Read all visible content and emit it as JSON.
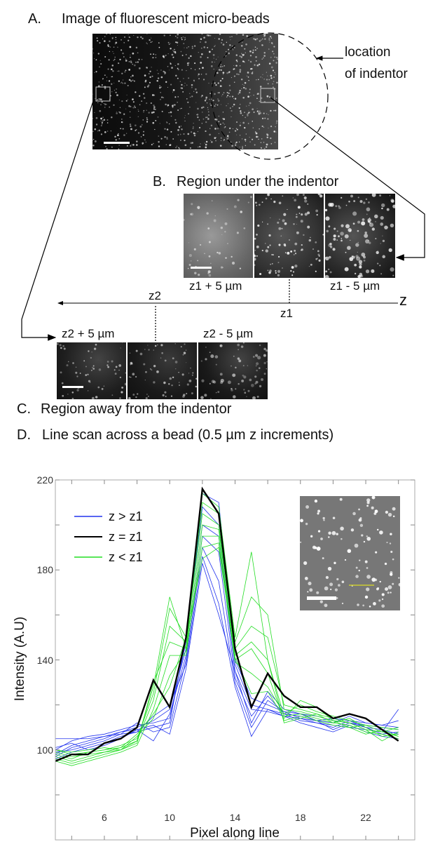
{
  "panels": {
    "a": {
      "letter": "A.",
      "title": "Image of fluorescent micro-beads",
      "annotation_line1": "location",
      "annotation_line2": "of indentor"
    },
    "b": {
      "letter": "B.",
      "title": "Region under the indentor",
      "label_left": "z1 + 5 µm",
      "label_right": "z1 - 5 µm"
    },
    "c": {
      "letter": "C.",
      "title": "Region away from the indentor",
      "label_left": "z2 + 5 µm",
      "label_right": "z2 - 5 µm"
    },
    "z_axis": {
      "axis_label": "z",
      "z1_label": "z1",
      "z2_label": "z2"
    },
    "d": {
      "letter": "D.",
      "title": "Line scan across a bead (0.5 µm z increments)"
    }
  },
  "colors": {
    "blue": "#2233ee",
    "black": "#000000",
    "green": "#22dd22",
    "inset_marker": "#cccc33"
  },
  "chart_data": {
    "type": "line",
    "title": "Line scan across a bead (0.5 µm z increments)",
    "xlabel": "Pixel along line",
    "ylabel": "Intensity (A.U)",
    "xlim": [
      3,
      25
    ],
    "ylim": [
      60,
      220
    ],
    "xticks": [
      "6",
      "10",
      "14",
      "18",
      "22"
    ],
    "yticks": [
      "100",
      "140",
      "180",
      "220"
    ],
    "legend": {
      "placement": "top-left",
      "entries": [
        "z > z1",
        "z = z1",
        "z < z1"
      ]
    },
    "x": [
      3,
      4,
      5,
      6,
      7,
      8,
      9,
      10,
      11,
      12,
      13,
      14,
      15,
      16,
      17,
      18,
      19,
      20,
      21,
      22,
      23,
      24
    ],
    "series": [
      {
        "name": "z = z1",
        "group": "black",
        "values": [
          95,
          98,
          98,
          103,
          105,
          110,
          131,
          119,
          150,
          216,
          205,
          145,
          119,
          134,
          124,
          119,
          119,
          114,
          116,
          114,
          109,
          104
        ]
      },
      {
        "name": "z > z1",
        "group": "blue",
        "values": [
          105,
          105,
          105,
          106,
          107,
          108,
          110,
          112,
          150,
          214,
          210,
          140,
          123,
          120,
          117,
          116,
          115,
          113,
          112,
          111,
          110,
          109
        ]
      },
      {
        "name": "z > z1",
        "group": "blue",
        "values": [
          100,
          104,
          106,
          107,
          109,
          111,
          112,
          114,
          148,
          208,
          200,
          138,
          120,
          118,
          116,
          115,
          113,
          114,
          113,
          112,
          111,
          113
        ]
      },
      {
        "name": "z > z1",
        "group": "blue",
        "values": [
          98,
          102,
          104,
          106,
          108,
          110,
          113,
          118,
          145,
          200,
          195,
          135,
          118,
          117,
          115,
          114,
          113,
          112,
          115,
          112,
          111,
          110
        ]
      },
      {
        "name": "z > z1",
        "group": "blue",
        "values": [
          97,
          101,
          103,
          105,
          108,
          109,
          104,
          116,
          142,
          195,
          188,
          132,
          115,
          124,
          116,
          113,
          112,
          111,
          110,
          109,
          108,
          118
        ]
      },
      {
        "name": "z > z1",
        "group": "blue",
        "values": [
          99,
          100,
          102,
          104,
          107,
          112,
          108,
          110,
          140,
          190,
          175,
          130,
          110,
          122,
          117,
          114,
          112,
          110,
          113,
          110,
          109,
          107
        ]
      },
      {
        "name": "z > z1",
        "group": "blue",
        "values": [
          96,
          99,
          101,
          103,
          106,
          108,
          115,
          120,
          138,
          186,
          165,
          128,
          106,
          118,
          115,
          112,
          110,
          108,
          111,
          108,
          106,
          105
        ]
      },
      {
        "name": "z > z1",
        "group": "blue",
        "values": [
          101,
          103,
          100,
          102,
          105,
          109,
          111,
          107,
          136,
          183,
          160,
          135,
          112,
          126,
          118,
          116,
          113,
          109,
          112,
          110,
          107,
          108
        ]
      },
      {
        "name": "z < z1",
        "group": "green",
        "values": [
          100,
          99,
          100,
          101,
          100,
          104,
          128,
          168,
          145,
          214,
          208,
          150,
          188,
          140,
          112,
          114,
          116,
          112,
          114,
          110,
          106,
          107
        ]
      },
      {
        "name": "z < z1",
        "group": "green",
        "values": [
          98,
          96,
          99,
          100,
          102,
          105,
          125,
          163,
          150,
          210,
          205,
          148,
          168,
          160,
          118,
          117,
          115,
          113,
          110,
          111,
          108,
          106
        ]
      },
      {
        "name": "z < z1",
        "group": "green",
        "values": [
          97,
          95,
          97,
          99,
          101,
          104,
          122,
          155,
          148,
          205,
          200,
          145,
          155,
          150,
          120,
          118,
          116,
          114,
          112,
          109,
          104,
          108
        ]
      },
      {
        "name": "z < z1",
        "group": "green",
        "values": [
          96,
          94,
          96,
          98,
          100,
          103,
          130,
          148,
          145,
          200,
          198,
          142,
          148,
          140,
          115,
          116,
          114,
          112,
          111,
          108,
          107,
          105
        ]
      },
      {
        "name": "z < z1",
        "group": "green",
        "values": [
          95,
          93,
          95,
          97,
          99,
          102,
          118,
          142,
          142,
          195,
          195,
          140,
          145,
          134,
          113,
          115,
          113,
          111,
          110,
          107,
          109,
          106
        ]
      },
      {
        "name": "z < z1",
        "group": "green",
        "values": [
          99,
          97,
          98,
          99,
          100,
          106,
          114,
          133,
          144,
          190,
          192,
          139,
          134,
          128,
          116,
          120,
          117,
          115,
          113,
          111,
          110,
          109
        ]
      },
      {
        "name": "z < z1",
        "group": "green",
        "values": [
          100,
          98,
          99,
          100,
          101,
          107,
          116,
          128,
          150,
          185,
          190,
          141,
          125,
          126,
          114,
          122,
          119,
          113,
          112,
          109,
          108,
          110
        ]
      }
    ]
  }
}
